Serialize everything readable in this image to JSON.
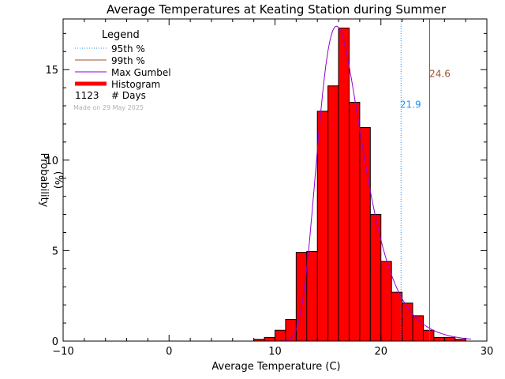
{
  "chart_data": {
    "type": "bar",
    "title": "Average Temperatures at Keating Station during Summer",
    "xlabel": "Average Temperature (C)",
    "ylabel": "Probability",
    "ylabel_unit": "(%)",
    "xlim": [
      -10,
      30
    ],
    "ylim": [
      0,
      17.8
    ],
    "xticks": [
      "−10",
      "0",
      "10",
      "20",
      "30"
    ],
    "xtick_values": [
      -10,
      0,
      10,
      20,
      30
    ],
    "yticks": [
      "0",
      "5",
      "10",
      "15"
    ],
    "ytick_values": [
      0,
      5,
      10,
      15
    ],
    "bin_width": 1,
    "histogram": {
      "name": "Histogram",
      "color": "#ff0000",
      "bin_starts": [
        8,
        9,
        10,
        11,
        12,
        13,
        14,
        15,
        16,
        17,
        18,
        19,
        20,
        21,
        22,
        23,
        24,
        25,
        26,
        27
      ],
      "values": [
        0.1,
        0.2,
        0.6,
        1.2,
        4.9,
        4.95,
        12.7,
        14.1,
        17.3,
        13.2,
        11.8,
        7.0,
        4.4,
        2.7,
        2.1,
        1.4,
        0.6,
        0.2,
        0.2,
        0.1
      ]
    },
    "gumbel": {
      "name": "Max Gumbel",
      "color": "#9400d3",
      "mode": 15.8,
      "scale": 2.1,
      "peak": 17.4,
      "x": [
        10,
        11,
        12,
        13,
        14,
        15,
        15.8,
        16,
        17,
        18,
        19,
        20,
        21,
        22,
        23,
        24,
        25,
        26,
        27,
        28,
        28.5
      ],
      "y": [
        0.0,
        0.3,
        2.1,
        7.4,
        13.7,
        16.9,
        17.4,
        17.3,
        15.4,
        12.3,
        9.1,
        6.5,
        4.5,
        3.1,
        2.1,
        1.4,
        0.9,
        0.6,
        0.4,
        0.25,
        0.2
      ]
    },
    "percentile_95": {
      "name": "95th %",
      "value": 21.9,
      "label": "21.9",
      "color": "#1e90ff"
    },
    "percentile_99": {
      "name": "99th %",
      "value": 24.6,
      "label": "24.6",
      "color": "#a0522d"
    },
    "legend": {
      "title": "Legend",
      "placement": "top-left",
      "entries": [
        {
          "label": "95th %",
          "style": "dotted",
          "color": "#1e90ff"
        },
        {
          "label": "99th %",
          "style": "solid",
          "color": "#a0522d"
        },
        {
          "label": "Max Gumbel",
          "style": "solid",
          "color": "#9400d3"
        },
        {
          "label": "Histogram",
          "style": "thick",
          "color": "#ff0000"
        }
      ],
      "count_value": "1123",
      "count_label": "# Days",
      "made_on": "Made on 29 May 2025"
    },
    "grid": false
  }
}
